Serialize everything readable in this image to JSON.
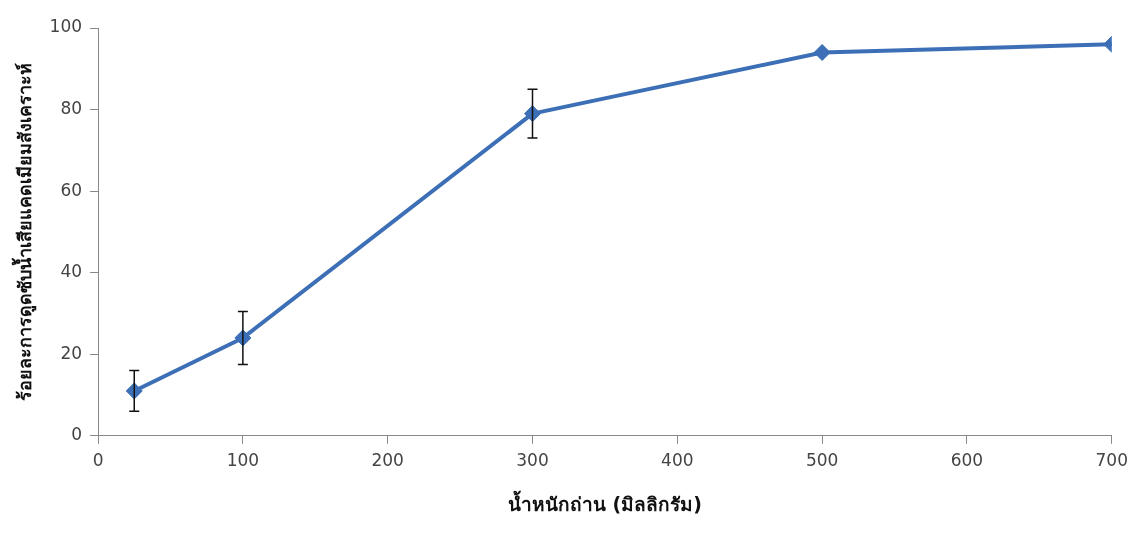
{
  "chart_data": {
    "type": "line",
    "xlabel": "น้ำหนักถ่าน (มิลลิกรัม)",
    "ylabel": "ร้อยละการดูดซับน้ำเสียแคดเมียมสังเคราะห์",
    "x": [
      25,
      100,
      300,
      500,
      700
    ],
    "series": [
      {
        "color": "#3d6fb6",
        "values": [
          11,
          24,
          79,
          94,
          96
        ],
        "errors": [
          5,
          6.5,
          6,
          null,
          null
        ]
      }
    ],
    "xlim": [
      0,
      700
    ],
    "xticks": [
      0,
      100,
      200,
      300,
      400,
      500,
      600,
      700
    ],
    "ylim": [
      0,
      100
    ],
    "yticks": [
      0,
      20,
      40,
      60,
      80,
      100
    ],
    "grid": false,
    "legend": false,
    "marker": "diamond",
    "line_style": "solid"
  }
}
